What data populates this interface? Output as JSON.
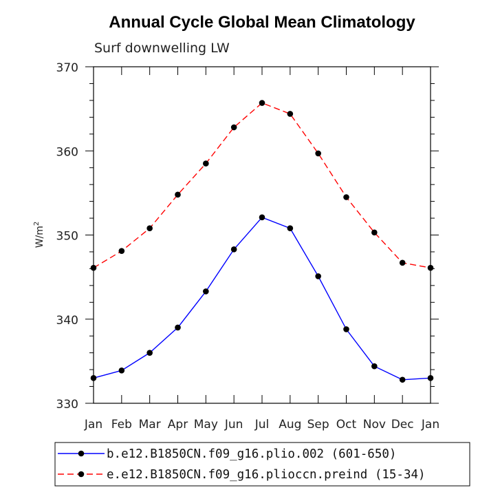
{
  "chart_data": {
    "type": "line",
    "title": "Annual Cycle Global Mean Climatology",
    "subtitle": "Surf downwelling LW",
    "ylabel": "W/m",
    "ylabel_superscript": "2",
    "ylim": [
      330,
      370
    ],
    "yticks": [
      330,
      340,
      350,
      360,
      370
    ],
    "categories": [
      "Jan",
      "Feb",
      "Mar",
      "Apr",
      "May",
      "Jun",
      "Jul",
      "Aug",
      "Sep",
      "Oct",
      "Nov",
      "Dec",
      "Jan"
    ],
    "series": [
      {
        "name": "b.e12.B1850CN.f09_g16.plio.002 (601-650)",
        "color": "#0000ff",
        "dash": "solid",
        "values": [
          333.0,
          333.9,
          336.0,
          339.0,
          343.3,
          348.3,
          352.1,
          350.8,
          345.1,
          338.8,
          334.4,
          332.8,
          333.0
        ]
      },
      {
        "name": "e.e12.B1850CN.f09_g16.plioccn.preind (15-34)",
        "color": "#ff0000",
        "dash": "dashed",
        "values": [
          346.1,
          348.1,
          350.8,
          354.8,
          358.5,
          362.8,
          365.7,
          364.4,
          359.7,
          354.5,
          350.3,
          346.7,
          346.1
        ]
      }
    ],
    "grid": false,
    "legend_position": "bottom"
  }
}
